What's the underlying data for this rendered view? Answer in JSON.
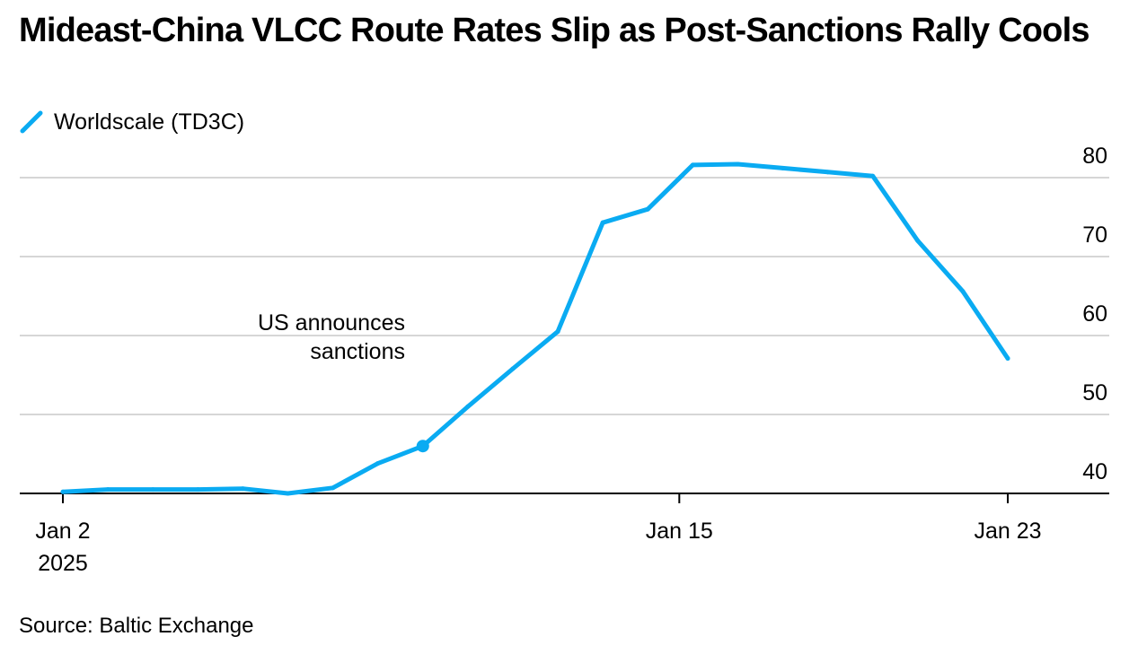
{
  "chart_data": {
    "type": "line",
    "title": "Mideast-China VLCC Route Rates Slip as Post-Sanctions Rally Cools",
    "legend": [
      "Worldscale (TD3C)"
    ],
    "source": "Source: Baltic Exchange",
    "ylim": [
      40,
      80
    ],
    "yticks": [
      40,
      50,
      60,
      70,
      80
    ],
    "xticks": [
      {
        "label": "Jan 2",
        "sublabel": "2025",
        "index": 0
      },
      {
        "label": "Jan 15",
        "index": 13.7
      },
      {
        "label": "Jan 23",
        "index": 21
      }
    ],
    "series": [
      {
        "name": "Worldscale (TD3C)",
        "color": "#0aabf2",
        "x": [
          0,
          1,
          2,
          3,
          4,
          5,
          6,
          7,
          8,
          9,
          10,
          11,
          12,
          13,
          14,
          15,
          16,
          17,
          18,
          19,
          20,
          21
        ],
        "values": [
          40.2,
          40.5,
          40.5,
          40.5,
          40.6,
          40.0,
          40.7,
          43.8,
          46.0,
          51.0,
          55.8,
          60.5,
          74.3,
          76.0,
          81.6,
          81.7,
          81.2,
          80.7,
          80.2,
          72.0,
          65.6,
          57.1
        ]
      }
    ],
    "annotation": {
      "line1": "US announces",
      "line2": "sanctions",
      "point_index": 8
    }
  }
}
